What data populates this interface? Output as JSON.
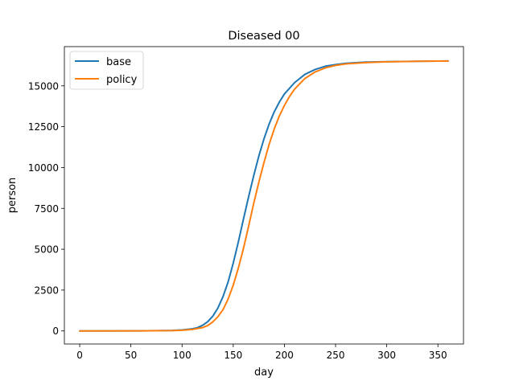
{
  "chart_data": {
    "type": "line",
    "title": "Diseased 00",
    "xlabel": "day",
    "ylabel": "person",
    "xlim": [
      -15,
      375
    ],
    "ylim": [
      -800,
      17400
    ],
    "xticks": [
      0,
      50,
      100,
      150,
      200,
      250,
      300,
      350
    ],
    "yticks": [
      0,
      2500,
      5000,
      7500,
      10000,
      12500,
      15000
    ],
    "grid": false,
    "legend_position": "upper-left",
    "series": [
      {
        "name": "base",
        "color": "#1f77b4",
        "x": [
          0,
          60,
          90,
          100,
          110,
          115,
          120,
          125,
          130,
          135,
          140,
          145,
          150,
          155,
          160,
          165,
          170,
          175,
          180,
          185,
          190,
          195,
          200,
          210,
          220,
          230,
          240,
          250,
          260,
          280,
          300,
          330,
          360
        ],
        "y": [
          0,
          5,
          30,
          60,
          130,
          200,
          340,
          560,
          900,
          1400,
          2100,
          3000,
          4150,
          5450,
          6850,
          8200,
          9500,
          10700,
          11750,
          12650,
          13400,
          14000,
          14500,
          15200,
          15700,
          16000,
          16200,
          16300,
          16380,
          16450,
          16480,
          16500,
          16520
        ]
      },
      {
        "name": "policy",
        "color": "#ff7f0e",
        "x": [
          0,
          60,
          90,
          100,
          110,
          120,
          125,
          130,
          135,
          140,
          145,
          150,
          155,
          160,
          165,
          170,
          175,
          180,
          185,
          190,
          195,
          200,
          205,
          210,
          220,
          230,
          240,
          250,
          260,
          280,
          300,
          330,
          360
        ],
        "y": [
          0,
          5,
          20,
          40,
          90,
          200,
          330,
          550,
          870,
          1300,
          1950,
          2800,
          3850,
          5050,
          6400,
          7800,
          9100,
          10300,
          11400,
          12350,
          13150,
          13800,
          14350,
          14800,
          15450,
          15850,
          16100,
          16250,
          16340,
          16420,
          16470,
          16500,
          16520
        ]
      }
    ]
  }
}
